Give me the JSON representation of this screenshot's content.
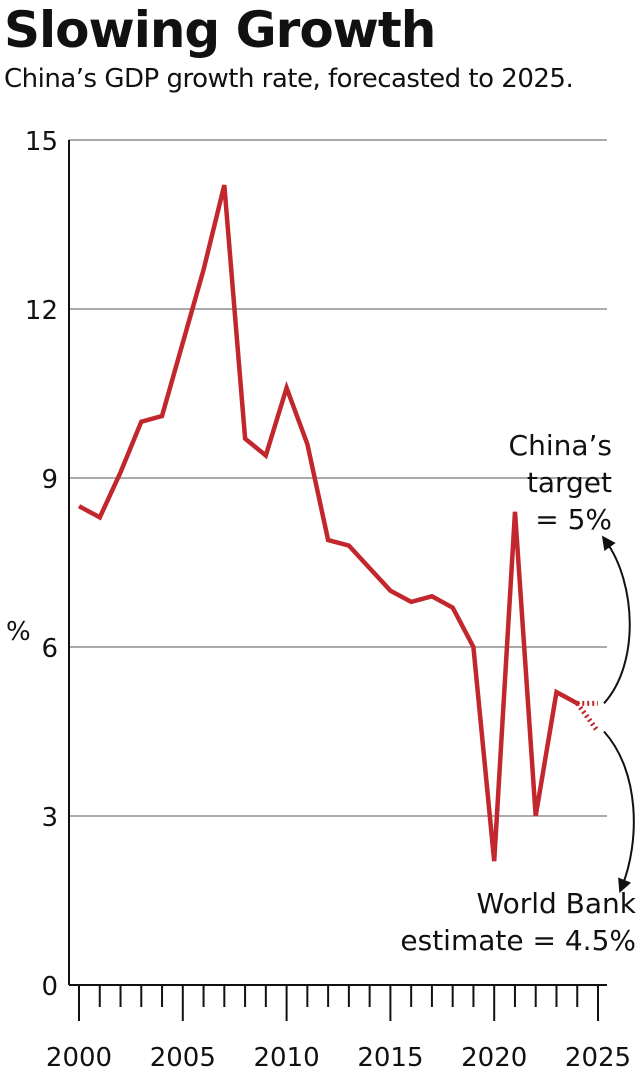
{
  "chart_data": {
    "type": "line",
    "title": "Slowing Growth",
    "subtitle": "China’s GDP growth rate, forecasted to 2025.",
    "xlabel": "",
    "ylabel": "%",
    "xlim": [
      2000,
      2025
    ],
    "ylim": [
      0,
      15
    ],
    "x_ticks": [
      2000,
      2005,
      2010,
      2015,
      2020,
      2025
    ],
    "y_ticks": [
      0,
      3,
      6,
      9,
      12,
      15
    ],
    "grid": true,
    "series": [
      {
        "color": "#c1272d",
        "x": [
          2000,
          2001,
          2002,
          2003,
          2004,
          2005,
          2006,
          2007,
          2008,
          2009,
          2010,
          2011,
          2012,
          2013,
          2014,
          2015,
          2016,
          2017,
          2018,
          2019,
          2020,
          2021,
          2022,
          2023,
          2024
        ],
        "values": [
          8.5,
          8.3,
          9.1,
          10.0,
          10.1,
          11.4,
          12.7,
          14.2,
          9.7,
          9.4,
          10.6,
          9.6,
          7.9,
          7.8,
          7.4,
          7.0,
          6.8,
          6.9,
          6.7,
          6.0,
          2.2,
          8.4,
          3.0,
          5.2,
          5.0
        ]
      }
    ],
    "forecast": {
      "color": "#c1272d",
      "china_target": {
        "x": [
          2024,
          2025
        ],
        "values": [
          5.0,
          5.0
        ],
        "label": [
          "China’s",
          "target",
          "= 5%"
        ]
      },
      "world_bank": {
        "x": [
          2024,
          2025
        ],
        "values": [
          5.0,
          4.5
        ],
        "label": [
          "World Bank",
          "estimate = 4.5%"
        ]
      }
    }
  }
}
